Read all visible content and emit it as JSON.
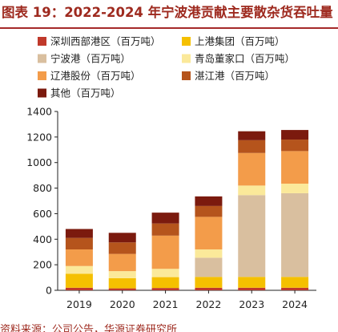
{
  "title": "图表 19：2022-2024 年宁波港贡献主要散杂货吞吐量",
  "source": "资料来源：公司公告，华源证券研究所",
  "chart_data": {
    "type": "bar",
    "stacked": true,
    "categories": [
      "2019",
      "2020",
      "2021",
      "2022",
      "2023",
      "2024"
    ],
    "ylim": [
      0,
      1400
    ],
    "yticks": [
      0,
      200,
      400,
      600,
      800,
      1000,
      1200,
      1400
    ],
    "grid": false,
    "legend_position": "top",
    "series": [
      {
        "name": "深圳西部港区（百万吨）",
        "color": "#c0392b",
        "values": [
          20,
          15,
          18,
          20,
          20,
          20
        ]
      },
      {
        "name": "上港集团（百万吨）",
        "color": "#f5c000",
        "values": [
          110,
          80,
          85,
          85,
          85,
          85
        ]
      },
      {
        "name": "宁波港（百万吨）",
        "color": "#d9bf9f",
        "values": [
          0,
          0,
          0,
          150,
          640,
          655
        ]
      },
      {
        "name": "青岛董家口（百万吨）",
        "color": "#fbe99a",
        "values": [
          60,
          55,
          65,
          65,
          75,
          75
        ]
      },
      {
        "name": "辽港股份（百万吨）",
        "color": "#f39c4a",
        "values": [
          130,
          135,
          260,
          255,
          255,
          255
        ]
      },
      {
        "name": "湛江港（百万吨）",
        "color": "#b5541c",
        "values": [
          90,
          90,
          95,
          85,
          100,
          90
        ]
      },
      {
        "name": "其他（百万吨）",
        "color": "#7b1a0e",
        "values": [
          70,
          75,
          85,
          75,
          70,
          75
        ]
      }
    ]
  }
}
